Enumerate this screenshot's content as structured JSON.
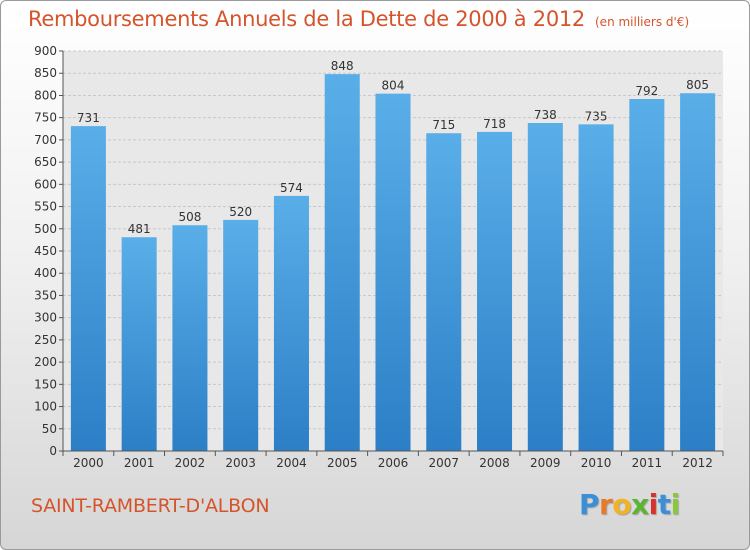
{
  "header": {
    "title": "Remboursements Annuels de la Dette de 2000 à 2012",
    "unit": "(en milliers d'€)"
  },
  "footer": {
    "city": "SAINT-RAMBERT-D'ALBON",
    "logo_letters": [
      "P",
      "r",
      "o",
      "x",
      "i",
      "t",
      "i"
    ],
    "logo_colors": [
      "#3a8fd6",
      "#e8792a",
      "#f0b323",
      "#5cb531",
      "#d6332e",
      "#3a8fd6",
      "#8cc63f"
    ]
  },
  "chart_data": {
    "type": "bar",
    "categories": [
      "2000",
      "2001",
      "2002",
      "2003",
      "2004",
      "2005",
      "2006",
      "2007",
      "2008",
      "2009",
      "2010",
      "2011",
      "2012"
    ],
    "values": [
      731,
      481,
      508,
      520,
      574,
      848,
      804,
      715,
      718,
      738,
      735,
      792,
      805
    ],
    "ylim": [
      0,
      900
    ],
    "yticks": [
      0,
      50,
      100,
      150,
      200,
      250,
      300,
      350,
      400,
      450,
      500,
      550,
      600,
      650,
      700,
      750,
      800,
      850,
      900
    ],
    "grid": true,
    "bar_color_top": "#5aaee8",
    "bar_color_bottom": "#2c7fc6"
  }
}
